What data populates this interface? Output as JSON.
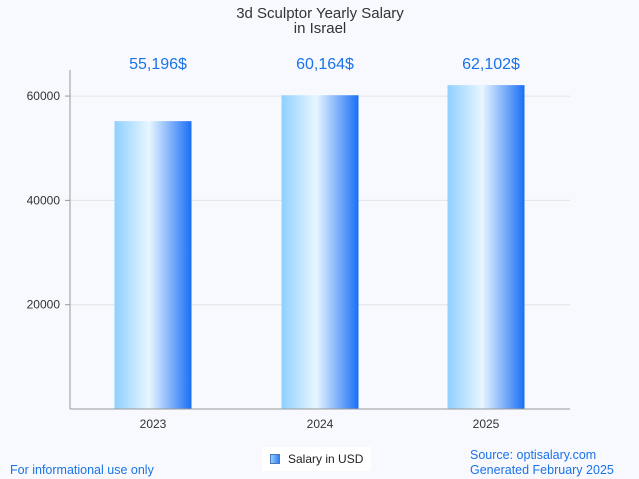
{
  "chart_data": {
    "type": "bar",
    "title": "3d Sculptor Yearly Salary",
    "subtitle": "in Israel",
    "categories": [
      "2023",
      "2024",
      "2025"
    ],
    "series": [
      {
        "name": "Salary in USD",
        "values": [
          55196,
          60164,
          62102
        ]
      }
    ],
    "data_labels": [
      "55,196$",
      "60,164$",
      "62,102$"
    ],
    "y_ticks": [
      "20000",
      "40000",
      "60000"
    ],
    "y_tick_values": [
      20000,
      40000,
      60000
    ],
    "ylim": [
      0,
      65000
    ],
    "grid": true,
    "legend_position": "bottom",
    "colors": {
      "bar_light": "#e8f6ff",
      "bar_mid": "#8fd0ff",
      "bar_dark": "#1a6ff5",
      "label": "#1a73e8",
      "grid": "#e3e3e3",
      "axis": "#999999"
    }
  },
  "footer": {
    "left": "For informational use only",
    "source": "Source: optisalary.com",
    "generated": "Generated February 2025"
  }
}
